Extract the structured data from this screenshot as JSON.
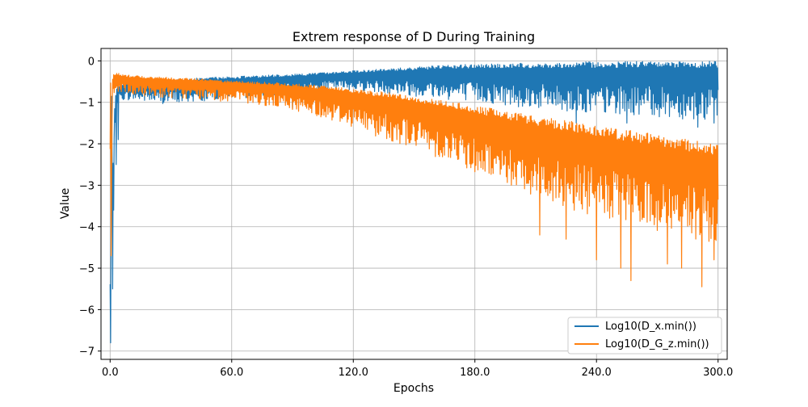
{
  "chart_data": {
    "type": "line",
    "title": "Extrem response of D During Training",
    "xlabel": "Epochs",
    "ylabel": "Value",
    "xlim": [
      -4.5,
      304.5
    ],
    "ylim": [
      -7.2,
      0.3
    ],
    "x_ticks": [
      0,
      60,
      120,
      180,
      240,
      300
    ],
    "x_tick_labels": [
      "0.0",
      "60.0",
      "120.0",
      "180.0",
      "240.0",
      "300.0"
    ],
    "y_ticks": [
      0,
      -1,
      -2,
      -3,
      -4,
      -5,
      -6,
      -7
    ],
    "y_tick_labels": [
      "0",
      "−1",
      "−2",
      "−3",
      "−4",
      "−5",
      "−6",
      "−7"
    ],
    "grid": true,
    "legend_position": "lower-right",
    "series": [
      {
        "name": "Log10(D_x.min())",
        "color": "#1f77b4",
        "x": [
          0,
          0.3,
          0.6,
          0.9,
          1.2,
          1.5,
          2,
          3,
          4,
          6,
          10,
          20,
          30,
          40,
          50,
          60,
          70,
          80,
          90,
          100,
          110,
          120,
          130,
          140,
          150,
          160,
          170,
          180,
          190,
          200,
          210,
          220,
          230,
          240,
          250,
          260,
          270,
          280,
          290,
          300
        ],
        "upper": [
          -2.5,
          -0.8,
          -0.4,
          -0.5,
          -1.5,
          -2.0,
          -1.2,
          -0.7,
          -0.6,
          -0.55,
          -0.5,
          -0.48,
          -0.45,
          -0.42,
          -0.4,
          -0.38,
          -0.36,
          -0.34,
          -0.32,
          -0.3,
          -0.27,
          -0.24,
          -0.21,
          -0.18,
          -0.15,
          -0.12,
          -0.1,
          -0.08,
          -0.07,
          -0.06,
          -0.05,
          -0.04,
          -0.03,
          -0.02,
          -0.02,
          -0.01,
          -0.01,
          -0.01,
          -0.01,
          -0.01
        ],
        "lower": [
          -6.8,
          -5.6,
          -4.5,
          -3.2,
          -3.6,
          -2.9,
          -1.9,
          -1.2,
          -1.0,
          -0.95,
          -0.95,
          -1.0,
          -1.05,
          -1.0,
          -0.95,
          -0.9,
          -0.9,
          -0.85,
          -0.8,
          -0.75,
          -0.7,
          -0.7,
          -0.75,
          -0.8,
          -0.85,
          -0.9,
          -0.95,
          -1.0,
          -1.05,
          -1.1,
          -1.15,
          -1.2,
          -1.25,
          -1.3,
          -1.3,
          -1.3,
          -1.35,
          -1.4,
          -1.4,
          -1.5
        ],
        "spikes": [
          [
            0.3,
            -6.8
          ],
          [
            1.2,
            -5.5
          ],
          [
            1.8,
            -3.6
          ],
          [
            3,
            -2.5
          ],
          [
            4,
            -1.9
          ],
          [
            90,
            -1.15
          ],
          [
            230,
            -1.5
          ],
          [
            255,
            -1.5
          ],
          [
            290,
            -1.6
          ],
          [
            298,
            -1.5
          ]
        ]
      },
      {
        "name": "Log10(D_G_z.min())",
        "color": "#ff7f0e",
        "x": [
          0,
          0.3,
          0.6,
          0.9,
          1.2,
          1.5,
          2,
          3,
          4,
          6,
          10,
          20,
          30,
          40,
          50,
          60,
          70,
          80,
          90,
          100,
          110,
          120,
          130,
          140,
          150,
          160,
          170,
          180,
          190,
          200,
          210,
          220,
          230,
          240,
          250,
          260,
          270,
          280,
          290,
          300
        ],
        "upper": [
          -0.1,
          -0.15,
          -0.3,
          -0.5,
          -0.4,
          -0.3,
          -0.3,
          -0.3,
          -0.3,
          -0.32,
          -0.35,
          -0.38,
          -0.4,
          -0.42,
          -0.45,
          -0.48,
          -0.5,
          -0.52,
          -0.55,
          -0.58,
          -0.62,
          -0.66,
          -0.72,
          -0.78,
          -0.85,
          -0.92,
          -1.0,
          -1.08,
          -1.16,
          -1.24,
          -1.32,
          -1.4,
          -1.48,
          -1.55,
          -1.62,
          -1.7,
          -1.78,
          -1.86,
          -1.94,
          -2.0
        ],
        "lower": [
          -4.6,
          -4.0,
          -2.5,
          -1.6,
          -1.1,
          -0.9,
          -0.85,
          -0.8,
          -0.8,
          -0.8,
          -0.85,
          -0.85,
          -0.9,
          -0.92,
          -0.95,
          -1.0,
          -1.05,
          -1.1,
          -1.2,
          -1.3,
          -1.45,
          -1.6,
          -1.8,
          -1.95,
          -2.1,
          -2.3,
          -2.5,
          -2.7,
          -2.9,
          -3.1,
          -3.3,
          -3.5,
          -3.65,
          -3.8,
          -3.95,
          -4.05,
          -4.15,
          -4.25,
          -4.35,
          -4.45
        ],
        "spikes": [
          [
            0.4,
            -4.7
          ],
          [
            0.8,
            -2.4
          ],
          [
            212,
            -4.2
          ],
          [
            225,
            -4.3
          ],
          [
            240,
            -4.8
          ],
          [
            252,
            -5.0
          ],
          [
            257,
            -5.3
          ],
          [
            275,
            -4.9
          ],
          [
            282,
            -5.0
          ],
          [
            292,
            -5.45
          ],
          [
            298,
            -4.8
          ]
        ]
      }
    ]
  }
}
